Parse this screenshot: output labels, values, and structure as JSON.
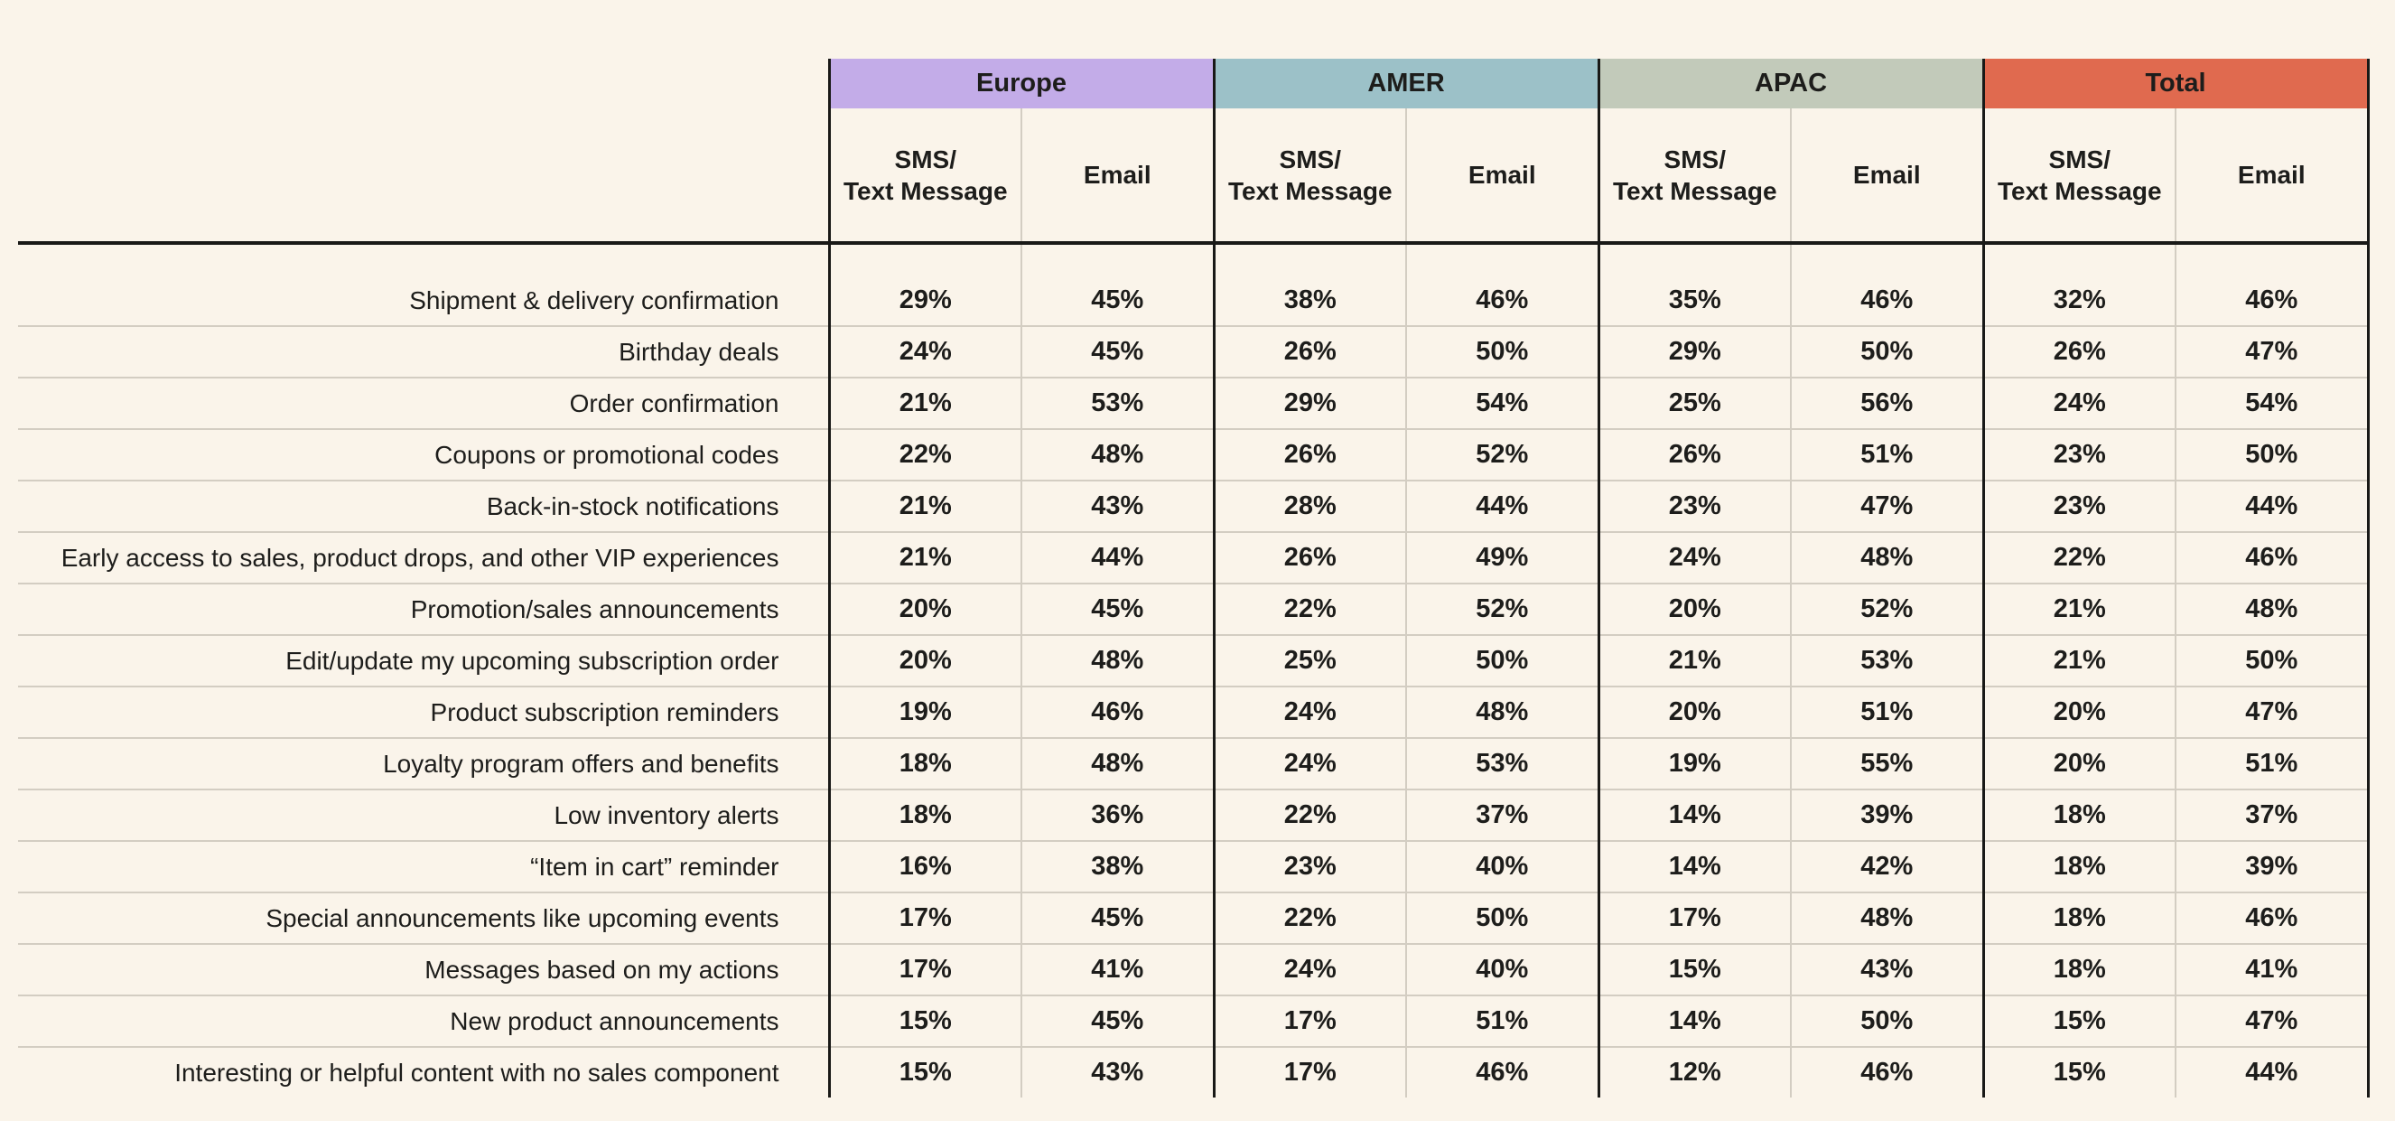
{
  "table": {
    "groups": [
      {
        "label": "Europe",
        "color": "#C3ACE8"
      },
      {
        "label": "AMER",
        "color": "#9CC1C8"
      },
      {
        "label": "APAC",
        "color": "#C2CABA"
      },
      {
        "label": "Total",
        "color": "#E06A4F"
      }
    ],
    "sms_header": "SMS/\nText Message",
    "email_header": "Email",
    "rows": [
      {
        "label": "Shipment & delivery confirmation",
        "values": [
          "29%",
          "45%",
          "38%",
          "46%",
          "35%",
          "46%",
          "32%",
          "46%"
        ]
      },
      {
        "label": "Birthday deals",
        "values": [
          "24%",
          "45%",
          "26%",
          "50%",
          "29%",
          "50%",
          "26%",
          "47%"
        ]
      },
      {
        "label": "Order confirmation",
        "values": [
          "21%",
          "53%",
          "29%",
          "54%",
          "25%",
          "56%",
          "24%",
          "54%"
        ]
      },
      {
        "label": "Coupons or promotional codes",
        "values": [
          "22%",
          "48%",
          "26%",
          "52%",
          "26%",
          "51%",
          "23%",
          "50%"
        ]
      },
      {
        "label": "Back-in-stock notifications",
        "values": [
          "21%",
          "43%",
          "28%",
          "44%",
          "23%",
          "47%",
          "23%",
          "44%"
        ]
      },
      {
        "label": "Early access to sales, product drops, and other VIP experiences",
        "values": [
          "21%",
          "44%",
          "26%",
          "49%",
          "24%",
          "48%",
          "22%",
          "46%"
        ]
      },
      {
        "label": "Promotion/sales announcements",
        "values": [
          "20%",
          "45%",
          "22%",
          "52%",
          "20%",
          "52%",
          "21%",
          "48%"
        ]
      },
      {
        "label": "Edit/update my upcoming subscription order",
        "values": [
          "20%",
          "48%",
          "25%",
          "50%",
          "21%",
          "53%",
          "21%",
          "50%"
        ]
      },
      {
        "label": "Product subscription reminders",
        "values": [
          "19%",
          "46%",
          "24%",
          "48%",
          "20%",
          "51%",
          "20%",
          "47%"
        ]
      },
      {
        "label": "Loyalty program offers and benefits",
        "values": [
          "18%",
          "48%",
          "24%",
          "53%",
          "19%",
          "55%",
          "20%",
          "51%"
        ]
      },
      {
        "label": "Low inventory alerts",
        "values": [
          "18%",
          "36%",
          "22%",
          "37%",
          "14%",
          "39%",
          "18%",
          "37%"
        ]
      },
      {
        "label": "“Item in cart” reminder",
        "values": [
          "16%",
          "38%",
          "23%",
          "40%",
          "14%",
          "42%",
          "18%",
          "39%"
        ]
      },
      {
        "label": "Special announcements like upcoming events",
        "values": [
          "17%",
          "45%",
          "22%",
          "50%",
          "17%",
          "48%",
          "18%",
          "46%"
        ]
      },
      {
        "label": "Messages based on my actions",
        "values": [
          "17%",
          "41%",
          "24%",
          "40%",
          "15%",
          "43%",
          "18%",
          "41%"
        ]
      },
      {
        "label": "New product announcements",
        "values": [
          "15%",
          "45%",
          "17%",
          "51%",
          "14%",
          "50%",
          "15%",
          "47%"
        ]
      },
      {
        "label": "Interesting or helpful content with no sales component",
        "values": [
          "15%",
          "43%",
          "17%",
          "46%",
          "12%",
          "46%",
          "15%",
          "44%"
        ]
      }
    ]
  },
  "colors": {
    "background": "#FAF4EA",
    "text": "#1D1D1B",
    "strong_rule": "#191917",
    "light_rule": "#D3CDC2"
  },
  "chart_data": {
    "type": "table",
    "title": "",
    "column_groups": [
      "Europe",
      "AMER",
      "APAC",
      "Total"
    ],
    "subcolumns": [
      "SMS/Text Message",
      "Email"
    ],
    "unit": "percent",
    "rows": [
      {
        "label": "Shipment & delivery confirmation",
        "values": [
          29,
          45,
          38,
          46,
          35,
          46,
          32,
          46
        ]
      },
      {
        "label": "Birthday deals",
        "values": [
          24,
          45,
          26,
          50,
          29,
          50,
          26,
          47
        ]
      },
      {
        "label": "Order confirmation",
        "values": [
          21,
          53,
          29,
          54,
          25,
          56,
          24,
          54
        ]
      },
      {
        "label": "Coupons or promotional codes",
        "values": [
          22,
          48,
          26,
          52,
          26,
          51,
          23,
          50
        ]
      },
      {
        "label": "Back-in-stock notifications",
        "values": [
          21,
          43,
          28,
          44,
          23,
          47,
          23,
          44
        ]
      },
      {
        "label": "Early access to sales, product drops, and other VIP experiences",
        "values": [
          21,
          44,
          26,
          49,
          24,
          48,
          22,
          46
        ]
      },
      {
        "label": "Promotion/sales announcements",
        "values": [
          20,
          45,
          22,
          52,
          20,
          52,
          21,
          48
        ]
      },
      {
        "label": "Edit/update my upcoming subscription order",
        "values": [
          20,
          48,
          25,
          50,
          21,
          53,
          21,
          50
        ]
      },
      {
        "label": "Product subscription reminders",
        "values": [
          19,
          46,
          24,
          48,
          20,
          51,
          20,
          47
        ]
      },
      {
        "label": "Loyalty program offers and benefits",
        "values": [
          18,
          48,
          24,
          53,
          19,
          55,
          20,
          51
        ]
      },
      {
        "label": "Low inventory alerts",
        "values": [
          18,
          36,
          22,
          37,
          14,
          39,
          18,
          37
        ]
      },
      {
        "label": "“Item in cart” reminder",
        "values": [
          16,
          38,
          23,
          40,
          14,
          42,
          18,
          39
        ]
      },
      {
        "label": "Special announcements like upcoming events",
        "values": [
          17,
          45,
          22,
          50,
          17,
          48,
          18,
          46
        ]
      },
      {
        "label": "Messages based on my actions",
        "values": [
          17,
          41,
          24,
          40,
          15,
          43,
          18,
          41
        ]
      },
      {
        "label": "New product announcements",
        "values": [
          15,
          45,
          17,
          51,
          14,
          50,
          15,
          47
        ]
      },
      {
        "label": "Interesting or helpful content with no sales component",
        "values": [
          15,
          43,
          17,
          46,
          12,
          46,
          15,
          44
        ]
      }
    ]
  }
}
